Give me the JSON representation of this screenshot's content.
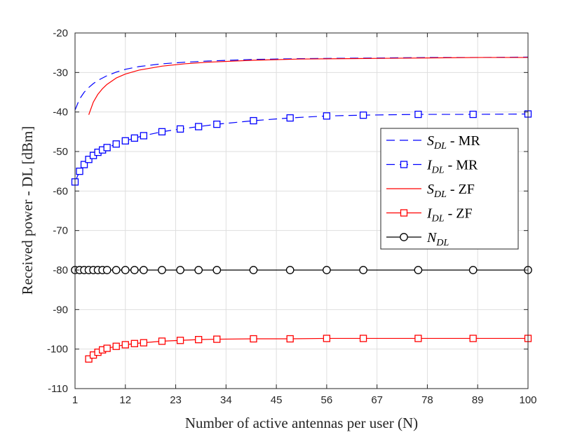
{
  "chart_data": {
    "type": "line",
    "title": "",
    "xlabel": "Number of active antennas per user (N)",
    "ylabel": "Received power - DL [dBm]",
    "xlim": [
      1,
      100
    ],
    "ylim": [
      -110,
      -20
    ],
    "xticks": [
      1,
      12,
      23,
      34,
      45,
      56,
      67,
      78,
      89,
      100
    ],
    "yticks": [
      -110,
      -100,
      -90,
      -80,
      -70,
      -60,
      -50,
      -40,
      -30,
      -20
    ],
    "grid": true,
    "legend_position": "right",
    "series": [
      {
        "name": "S_DL - MR",
        "legend_main": "S",
        "legend_sub": "DL",
        "legend_suffix": " - MR",
        "color": "#0000ff",
        "dash": "dashed",
        "marker": "none",
        "x": [
          1,
          2,
          3,
          4,
          5,
          6,
          8,
          10,
          12,
          15,
          20,
          25,
          30,
          40,
          50,
          60,
          70,
          80,
          90,
          100
        ],
        "y": [
          -39.5,
          -36.7,
          -35,
          -33.8,
          -32.8,
          -32,
          -30.8,
          -29.9,
          -29.2,
          -28.5,
          -27.8,
          -27.4,
          -27.1,
          -26.7,
          -26.5,
          -26.4,
          -26.3,
          -26.2,
          -26.2,
          -26.1
        ]
      },
      {
        "name": "I_DL - MR",
        "legend_main": "I",
        "legend_sub": "DL",
        "legend_suffix": " - MR",
        "color": "#0000ff",
        "dash": "dashed",
        "marker": "square",
        "x": [
          1,
          2,
          3,
          4,
          5,
          6,
          7,
          8,
          10,
          12,
          14,
          16,
          20,
          24,
          28,
          32,
          40,
          48,
          56,
          64,
          76,
          88,
          100
        ],
        "y": [
          -57.7,
          -55,
          -53.3,
          -52,
          -51,
          -50.2,
          -49.6,
          -49,
          -48.1,
          -47.3,
          -46.6,
          -46,
          -45,
          -44.3,
          -43.7,
          -43.1,
          -42.2,
          -41.5,
          -41,
          -40.8,
          -40.6,
          -40.6,
          -40.5
        ]
      },
      {
        "name": "S_DL - ZF",
        "legend_main": "S",
        "legend_sub": "DL",
        "legend_suffix": " - ZF",
        "color": "#ff0000",
        "dash": "solid",
        "marker": "none",
        "x": [
          4,
          5,
          6,
          7,
          8,
          10,
          12,
          15,
          20,
          25,
          30,
          40,
          50,
          60,
          70,
          80,
          90,
          100
        ],
        "y": [
          -40.7,
          -37.5,
          -35.5,
          -34.1,
          -33,
          -31.4,
          -30.4,
          -29.4,
          -28.4,
          -27.8,
          -27.4,
          -26.9,
          -26.6,
          -26.5,
          -26.4,
          -26.3,
          -26.2,
          -26.2
        ]
      },
      {
        "name": "I_DL - ZF",
        "legend_main": "I",
        "legend_sub": "DL",
        "legend_suffix": " - ZF",
        "color": "#ff0000",
        "dash": "solid",
        "marker": "square",
        "x": [
          4,
          5,
          6,
          7,
          8,
          10,
          12,
          14,
          16,
          20,
          24,
          28,
          32,
          40,
          48,
          56,
          64,
          76,
          88,
          100
        ],
        "y": [
          -102.5,
          -101.5,
          -100.8,
          -100.2,
          -99.8,
          -99.3,
          -98.9,
          -98.6,
          -98.4,
          -98,
          -97.8,
          -97.6,
          -97.5,
          -97.4,
          -97.4,
          -97.3,
          -97.3,
          -97.3,
          -97.3,
          -97.3
        ]
      },
      {
        "name": "N_DL",
        "legend_main": "N",
        "legend_sub": "DL",
        "legend_suffix": "",
        "color": "#000000",
        "dash": "solid",
        "marker": "circle",
        "x": [
          1,
          2,
          3,
          4,
          5,
          6,
          7,
          8,
          10,
          12,
          14,
          16,
          20,
          24,
          28,
          32,
          40,
          48,
          56,
          64,
          76,
          88,
          100
        ],
        "y": [
          -80,
          -80,
          -80,
          -80,
          -80,
          -80,
          -80,
          -80,
          -80,
          -80,
          -80,
          -80,
          -80,
          -80,
          -80,
          -80,
          -80,
          -80,
          -80,
          -80,
          -80,
          -80,
          -80
        ]
      }
    ]
  }
}
